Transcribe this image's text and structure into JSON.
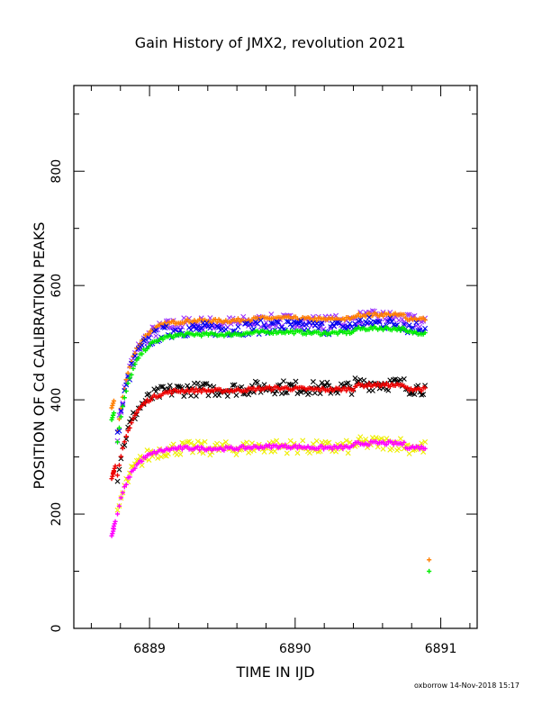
{
  "footer": "oxborrow 14-Nov-2018 15:17",
  "chart_data": {
    "type": "scatter",
    "title": "Gain History of JMX2, revolution 2021",
    "xlabel": "TIME IN IJD",
    "ylabel": "POSITION OF Cd CALIBRATION PEAKS",
    "xlim": [
      6888.48,
      6891.25
    ],
    "ylim": [
      0,
      950
    ],
    "x_ticks": [
      6889,
      6890,
      6891
    ],
    "x_tick_labels": [
      "6889",
      "6890",
      "6891"
    ],
    "y_ticks": [
      0,
      200,
      400,
      600,
      800
    ],
    "y_tick_labels": [
      "0",
      "200",
      "400",
      "600",
      "800"
    ],
    "grid": false,
    "series": [
      {
        "color": "#9b30ff",
        "marker": "x",
        "plateau": 538,
        "scatter": 12
      },
      {
        "color": "#ff7f00",
        "marker": "+",
        "plateau": 543,
        "scatter": 3
      },
      {
        "color": "#0000ee",
        "marker": "x",
        "plateau": 528,
        "scatter": 12
      },
      {
        "color": "#00ee00",
        "marker": "+",
        "plateau": 519,
        "scatter": 3
      },
      {
        "color": "#000000",
        "marker": "x",
        "plateau": 422,
        "scatter": 12
      },
      {
        "color": "#ee0000",
        "marker": "+",
        "plateau": 420,
        "scatter": 3
      },
      {
        "color": "#eeee00",
        "marker": "x",
        "plateau": 318,
        "scatter": 12
      },
      {
        "color": "#ff00ff",
        "marker": "+",
        "plateau": 318,
        "scatter": 3
      }
    ],
    "early_points": [
      {
        "color": "#ff00ff",
        "x": 6888.74,
        "y": 162
      },
      {
        "color": "#ff00ff",
        "x": 6888.75,
        "y": 175
      },
      {
        "color": "#ee0000",
        "x": 6888.74,
        "y": 262
      },
      {
        "color": "#ee0000",
        "x": 6888.75,
        "y": 272
      },
      {
        "color": "#00ee00",
        "x": 6888.74,
        "y": 365
      },
      {
        "color": "#ff7f00",
        "x": 6888.74,
        "y": 386
      }
    ],
    "outliers": [
      {
        "color": "#ff7f00",
        "x": 6890.92,
        "y": 120
      },
      {
        "color": "#00ee00",
        "x": 6890.92,
        "y": 100
      }
    ]
  }
}
